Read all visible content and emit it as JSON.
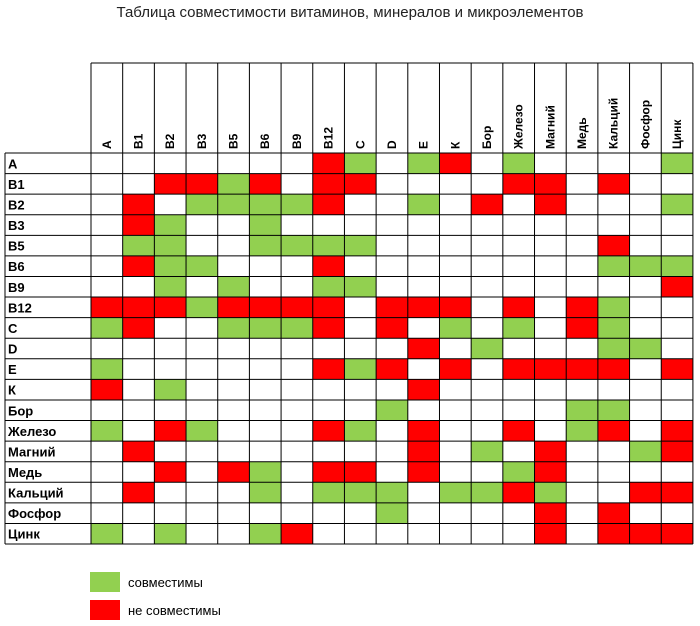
{
  "title": "Таблица совместимости витаминов, минералов и микроэлементов",
  "colors": {
    "compatible": "#92d050",
    "incompatible": "#ff0000",
    "empty": "#ffffff",
    "grid": "#000000"
  },
  "legend": {
    "compatible": "совместимы",
    "incompatible": "не совместимы"
  },
  "chart_data": {
    "type": "heatmap",
    "title": "Таблица совместимости витаминов, минералов и микроэлементов",
    "columns": [
      "А",
      "В1",
      "В2",
      "В3",
      "В5",
      "В6",
      "В9",
      "В12",
      "С",
      "D",
      "Е",
      "К",
      "Бор",
      "Железо",
      "Магний",
      "Медь",
      "Кальций",
      "Фосфор",
      "Цинк"
    ],
    "rows": [
      "А",
      "В1",
      "В2",
      "В3",
      "В5",
      "В6",
      "В9",
      "В12",
      "С",
      "D",
      "Е",
      "К",
      "Бор",
      "Железо",
      "Магний",
      "Медь",
      "Кальций",
      "Фосфор",
      "Цинк"
    ],
    "legend": {
      "G": "совместимы",
      "R": "не совместимы",
      ".": ""
    },
    "matrix": [
      ".......RG.GR.G....G",
      "..RRGR.RR....RR.R..",
      ".R.GGGGR..G.R.R...G",
      ".RG..G.............",
      ".GG..GGGG.......R..",
      ".RGG...R........GGG",
      "..G.G..GG.........R",
      "RRRGRRRR.RRR.R.RG..",
      "GR..GGGR.R.G.G.RG..",
      "..........R.G...GG.",
      "G......RGR.R.RRRR.R",
      "R.G.......R........",
      ".........G.....GG..",
      "G.RG...RG.R..R.GR.R",
      ".R........R.G.R..GR",
      "..R.RG.RR.R..GR....",
      ".R...G.GGG.GGRG..RR",
      ".........G....R.R..",
      "G.G..GR.......R.RRR"
    ]
  }
}
